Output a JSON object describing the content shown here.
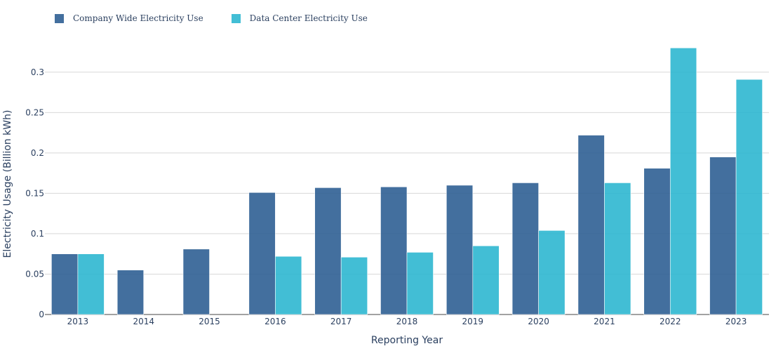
{
  "chart_data": {
    "type": "bar",
    "title": "",
    "xlabel": "Reporting Year",
    "ylabel": "Electricity Usage (Billion kWh)",
    "categories": [
      "2013",
      "2014",
      "2015",
      "2016",
      "2017",
      "2018",
      "2019",
      "2020",
      "2021",
      "2022",
      "2023"
    ],
    "series": [
      {
        "name": "Company Wide Electricity Use",
        "color": "#2f5f94",
        "values": [
          0.075,
          0.055,
          0.081,
          0.151,
          0.157,
          0.158,
          0.16,
          0.163,
          0.222,
          0.181,
          0.195
        ]
      },
      {
        "name": "Data Center Electricity Use",
        "color": "#2eb7d0",
        "values": [
          0.075,
          null,
          null,
          0.072,
          0.071,
          0.077,
          0.085,
          0.104,
          0.163,
          0.33,
          0.291
        ]
      }
    ],
    "ylim": [
      0,
      0.345
    ],
    "yticks": [
      0,
      0.05,
      0.1,
      0.15,
      0.2,
      0.25,
      0.3
    ],
    "ytick_labels": [
      "0",
      "0.05",
      "0.1",
      "0.15",
      "0.2",
      "0.25",
      "0.3"
    ],
    "grid": true,
    "legend_position": "top-left, horizontal"
  }
}
